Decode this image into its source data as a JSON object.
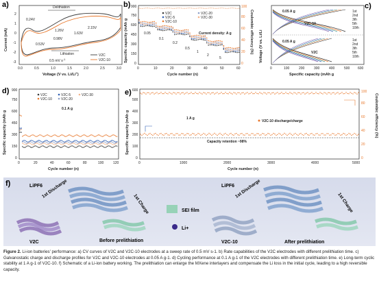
{
  "panels": {
    "a": {
      "label": "a)",
      "xlabel": "Voltage (V vs. Li/Li",
      "xlabel_sup": "+",
      "xlabel_end": ")",
      "ylabel": "Current (mA)",
      "annotations": [
        "Delithiation",
        "Lithiation",
        "0.24V",
        "1.26V",
        "2.15V",
        "0.53V",
        "0.98V",
        "1.63V",
        "0.5 mV s",
        "-1"
      ],
      "legend": [
        "V2C",
        "V2C-10"
      ],
      "xticks": [
        "0.0",
        "0.5",
        "1.0",
        "1.5",
        "2.0",
        "2.5",
        "3.0"
      ],
      "yticks": [
        "-3",
        "-2",
        "-1",
        "0",
        "1",
        "2"
      ]
    },
    "b": {
      "label": "b)",
      "xlabel": "Cycle number (n)",
      "ylabel": "Specific capacity (mAh g",
      "ylabel2": "Coulombic efficiency (%)",
      "legend": [
        "V2C",
        "V2C-5",
        "V2C-10",
        "V2C-20",
        "V2C-30"
      ],
      "rates": [
        "0.05",
        "0.1",
        "0.2",
        "0.5",
        "1",
        "2",
        "5"
      ],
      "rate_title": "Current density: A g",
      "xticks": [
        "0",
        "10",
        "20",
        "30",
        "40",
        "50",
        "60"
      ],
      "yticks": [
        "0",
        "150",
        "300",
        "450",
        "600",
        "750",
        "900"
      ],
      "y2ticks": [
        "0",
        "20",
        "40",
        "60",
        "80",
        "100"
      ]
    },
    "c": {
      "label": "c)",
      "xlabel": "Specific capacity (mAh g",
      "ylabel": "Voltage (V vs. Li/Li",
      "top_rate": "0.05 A g",
      "bottom_rate": "0.05 A g",
      "top_name": "V2C-10",
      "bottom_name": "V2C",
      "legend": [
        "1st",
        "2nd",
        "3th",
        "5th",
        "10th"
      ],
      "xticks": [
        "0",
        "100",
        "200",
        "300",
        "400",
        "500",
        "600"
      ]
    },
    "d": {
      "label": "d)",
      "xlabel": "Cycle number (n)",
      "ylabel": "Specific capacity (mAh g",
      "legend": [
        "V2C",
        "V2C-5",
        "V2C-10",
        "V2C-20",
        "V2C-30"
      ],
      "rate": "0.1 A g",
      "xticks": [
        "0",
        "20",
        "40",
        "60",
        "80",
        "100",
        "120"
      ],
      "yticks": [
        "0",
        "150",
        "300",
        "450",
        "600",
        "750",
        "900"
      ]
    },
    "e": {
      "label": "e)",
      "xlabel": "Cycle number (n)",
      "ylabel": "Specific capacity (mAh g",
      "ylabel2": "Coulombic efficiency (%)",
      "rate": "1 A g",
      "legend": "V2C-10 discharge/charge",
      "retention": "Capacity retention ~98%",
      "xticks": [
        "0",
        "1000",
        "2000",
        "3000",
        "4000",
        "5000"
      ],
      "yticks": [
        "0",
        "100",
        "200",
        "300",
        "400",
        "500",
        "600"
      ],
      "y2ticks": [
        "0",
        "20",
        "40",
        "60",
        "80",
        "100"
      ]
    },
    "f": {
      "label": "f)",
      "labels": [
        "LiPF6",
        "1st Discharge",
        "1st Charge",
        "V2C",
        "Before prelithiation",
        "SEI film",
        "Li+",
        "LiPF6",
        "1st Discharge",
        "1st Charge",
        "V2C-10",
        "After prelithiation"
      ]
    }
  },
  "caption": {
    "lead": "Figure 2.",
    "text": "Li-ion batteries' performance: a) CV curves of V2C and V2C-10 electrodes at a sweep rate of 0.5 mV s-1. b) Rate capabilities of the V2C electrodes with different prelithiation time. c) Galvanostatic charge and discharge profiles for V2C and V2C-10 electrodes at 0.05 A g-1. d) Cycling performance at 0.1 A g-1 of the V2C electrodes with different prelithiation time. e) Long-term cyclic stability at 1 A g-1 of V2C-10. f) Schematic of a Li-ion battery working. The prelithiation can enlarge the MXene interlayers and compensate the Li loss in the initial cycle, leading to a high reversible capacity."
  },
  "colors": {
    "v2c": "#3a3a3a",
    "v2c10": "#e8782c",
    "v2c5": "#2f5fb3",
    "v2c20": "#8fa0c8",
    "v2c30": "#f3b48a",
    "teal": "#3a8f86",
    "purple": "#7c5aa8"
  }
}
